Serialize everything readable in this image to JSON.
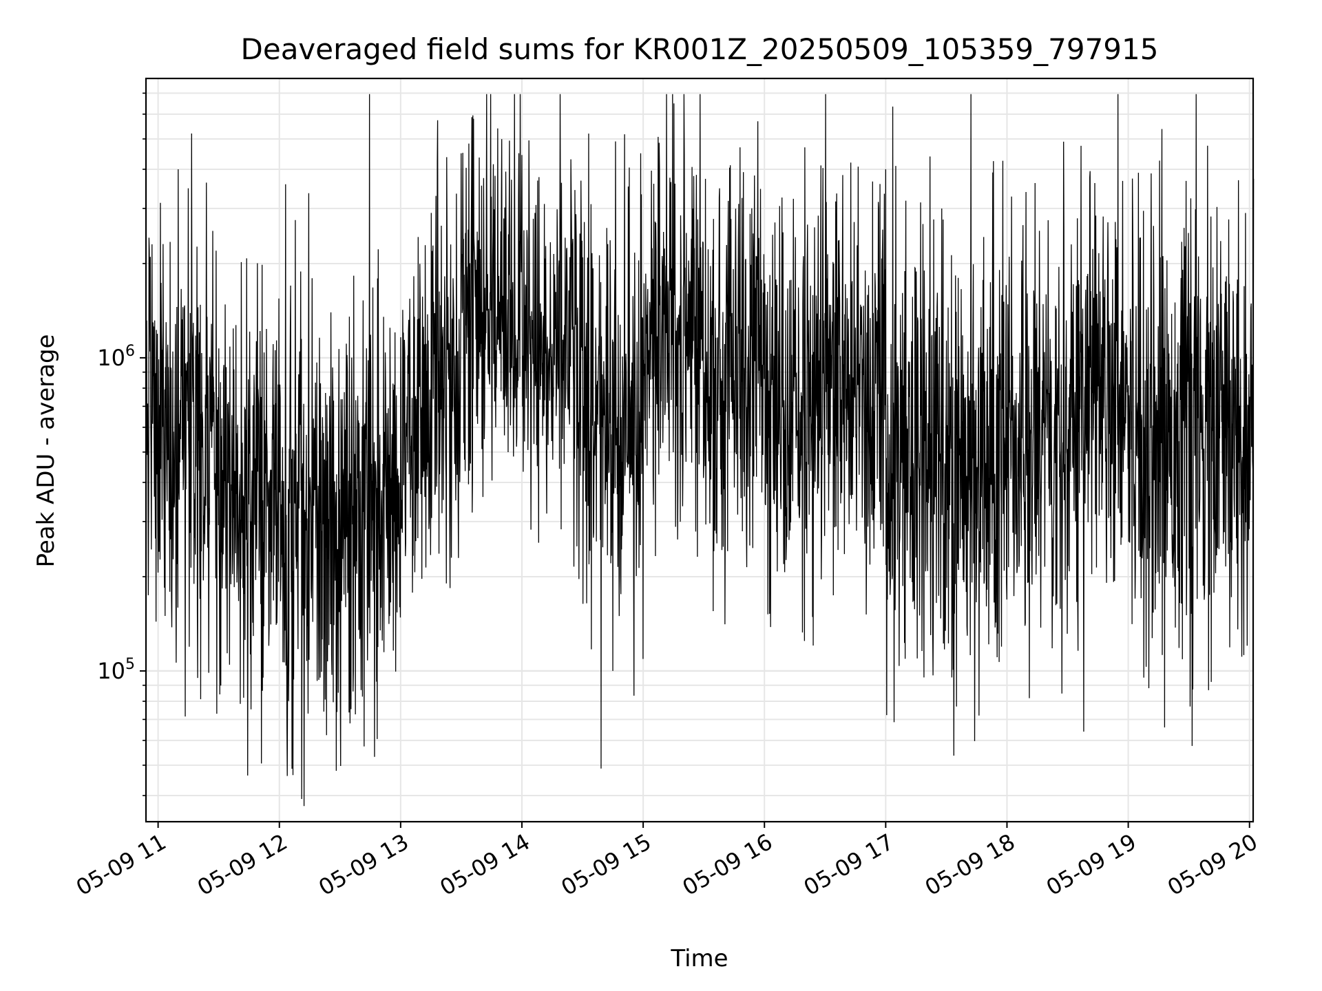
{
  "chart_data": {
    "type": "line",
    "title": "Deaveraged field sums for KR001Z_20250509_105359_797915",
    "xlabel": "Time",
    "ylabel": "Peak ADU - average",
    "yscale": "log",
    "ylim": [
      33000,
      7800000
    ],
    "xlim_hours": [
      10.9,
      20.03
    ],
    "grid": true,
    "x_tick_labels": [
      "05-09 11",
      "05-09 12",
      "05-09 13",
      "05-09 14",
      "05-09 15",
      "05-09 16",
      "05-09 17",
      "05-09 18",
      "05-09 19",
      "05-09 20"
    ],
    "y_tick_labels": [
      {
        "base": "10",
        "exp": "5",
        "value": 100000
      },
      {
        "base": "10",
        "exp": "6",
        "value": 1000000
      }
    ],
    "series": [
      {
        "color": "#000000",
        "segments": [
          {
            "start": "05-09 10:54",
            "end": "05-09 11:00",
            "median": 600000,
            "spread_decades": 0.35
          },
          {
            "start": "05-09 11:00",
            "end": "05-09 11:30",
            "median": 550000,
            "spread_decades": 0.35
          },
          {
            "start": "05-09 11:30",
            "end": "05-09 12:00",
            "median": 380000,
            "spread_decades": 0.35
          },
          {
            "start": "05-09 12:00",
            "end": "05-09 12:30",
            "median": 320000,
            "spread_decades": 0.38
          },
          {
            "start": "05-09 12:30",
            "end": "05-09 13:00",
            "median": 330000,
            "spread_decades": 0.38
          },
          {
            "start": "05-09 13:00",
            "end": "05-09 13:30",
            "median": 700000,
            "spread_decades": 0.32
          },
          {
            "start": "05-09 13:30",
            "end": "05-09 14:00",
            "median": 1500000,
            "spread_decades": 0.28
          },
          {
            "start": "05-09 14:00",
            "end": "05-09 14:30",
            "median": 1050000,
            "spread_decades": 0.3
          },
          {
            "start": "05-09 14:30",
            "end": "05-09 15:00",
            "median": 650000,
            "spread_decades": 0.35
          },
          {
            "start": "05-09 15:00",
            "end": "05-09 15:30",
            "median": 1250000,
            "spread_decades": 0.3
          },
          {
            "start": "05-09 15:30",
            "end": "05-09 16:00",
            "median": 900000,
            "spread_decades": 0.33
          },
          {
            "start": "05-09 16:00",
            "end": "05-09 16:30",
            "median": 700000,
            "spread_decades": 0.35
          },
          {
            "start": "05-09 16:30",
            "end": "05-09 17:00",
            "median": 850000,
            "spread_decades": 0.33
          },
          {
            "start": "05-09 17:00",
            "end": "05-09 17:30",
            "median": 450000,
            "spread_decades": 0.38
          },
          {
            "start": "05-09 17:30",
            "end": "05-09 18:00",
            "median": 450000,
            "spread_decades": 0.35
          },
          {
            "start": "05-09 18:00",
            "end": "05-09 18:30",
            "median": 550000,
            "spread_decades": 0.35
          },
          {
            "start": "05-09 18:30",
            "end": "05-09 19:00",
            "median": 900000,
            "spread_decades": 0.32
          },
          {
            "start": "05-09 19:00",
            "end": "05-09 19:30",
            "median": 600000,
            "spread_decades": 0.35
          },
          {
            "start": "05-09 19:30",
            "end": "05-09 20:02",
            "median": 550000,
            "spread_decades": 0.37
          }
        ],
        "notable_points": [
          {
            "x": "05-09 11:10",
            "y": 4000000
          },
          {
            "x": "05-09 11:29",
            "y": 73000
          },
          {
            "x": "05-09 12:11",
            "y": 39000
          },
          {
            "x": "05-09 12:35",
            "y": 68000
          },
          {
            "x": "05-09 13:30",
            "y": 4500000
          },
          {
            "x": "05-09 13:48",
            "y": 5400000
          },
          {
            "x": "05-09 14:33",
            "y": 5200000
          },
          {
            "x": "05-09 14:45",
            "y": 100000
          },
          {
            "x": "05-09 15:48",
            "y": 4700000
          },
          {
            "x": "05-09 16:20",
            "y": 4700000
          },
          {
            "x": "05-09 17:05",
            "y": 4100000
          },
          {
            "x": "05-09 17:35",
            "y": 77000
          },
          {
            "x": "05-09 18:28",
            "y": 4900000
          },
          {
            "x": "05-09 18:38",
            "y": 64000
          },
          {
            "x": "05-09 19:05",
            "y": 3900000
          },
          {
            "x": "05-09 19:18",
            "y": 66000
          },
          {
            "x": "05-09 19:58",
            "y": 2900000
          }
        ]
      }
    ]
  }
}
